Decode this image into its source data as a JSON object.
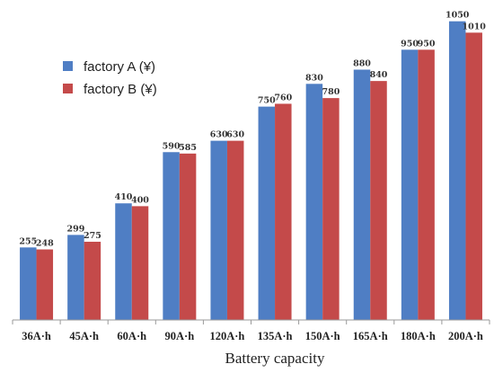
{
  "chart_data": {
    "type": "bar",
    "title": "",
    "xlabel": "Battery capacity",
    "ylabel": "",
    "ylim": [
      0,
      1200
    ],
    "grid": false,
    "legend_position": "top-left",
    "categories": [
      "36A·h",
      "45A·h",
      "60A·h",
      "90A·h",
      "120A·h",
      "135A·h",
      "150A·h",
      "165A·h",
      "180A·h",
      "200A·h"
    ],
    "series": [
      {
        "name": "factory A (¥)",
        "color": "#4f7ec4",
        "values": [
          255,
          299,
          410,
          590,
          630,
          750,
          830,
          880,
          950,
          1050
        ]
      },
      {
        "name": "factory B (¥)",
        "color": "#c44a4a",
        "values": [
          248,
          275,
          400,
          585,
          630,
          760,
          780,
          840,
          950,
          1010
        ]
      }
    ]
  }
}
